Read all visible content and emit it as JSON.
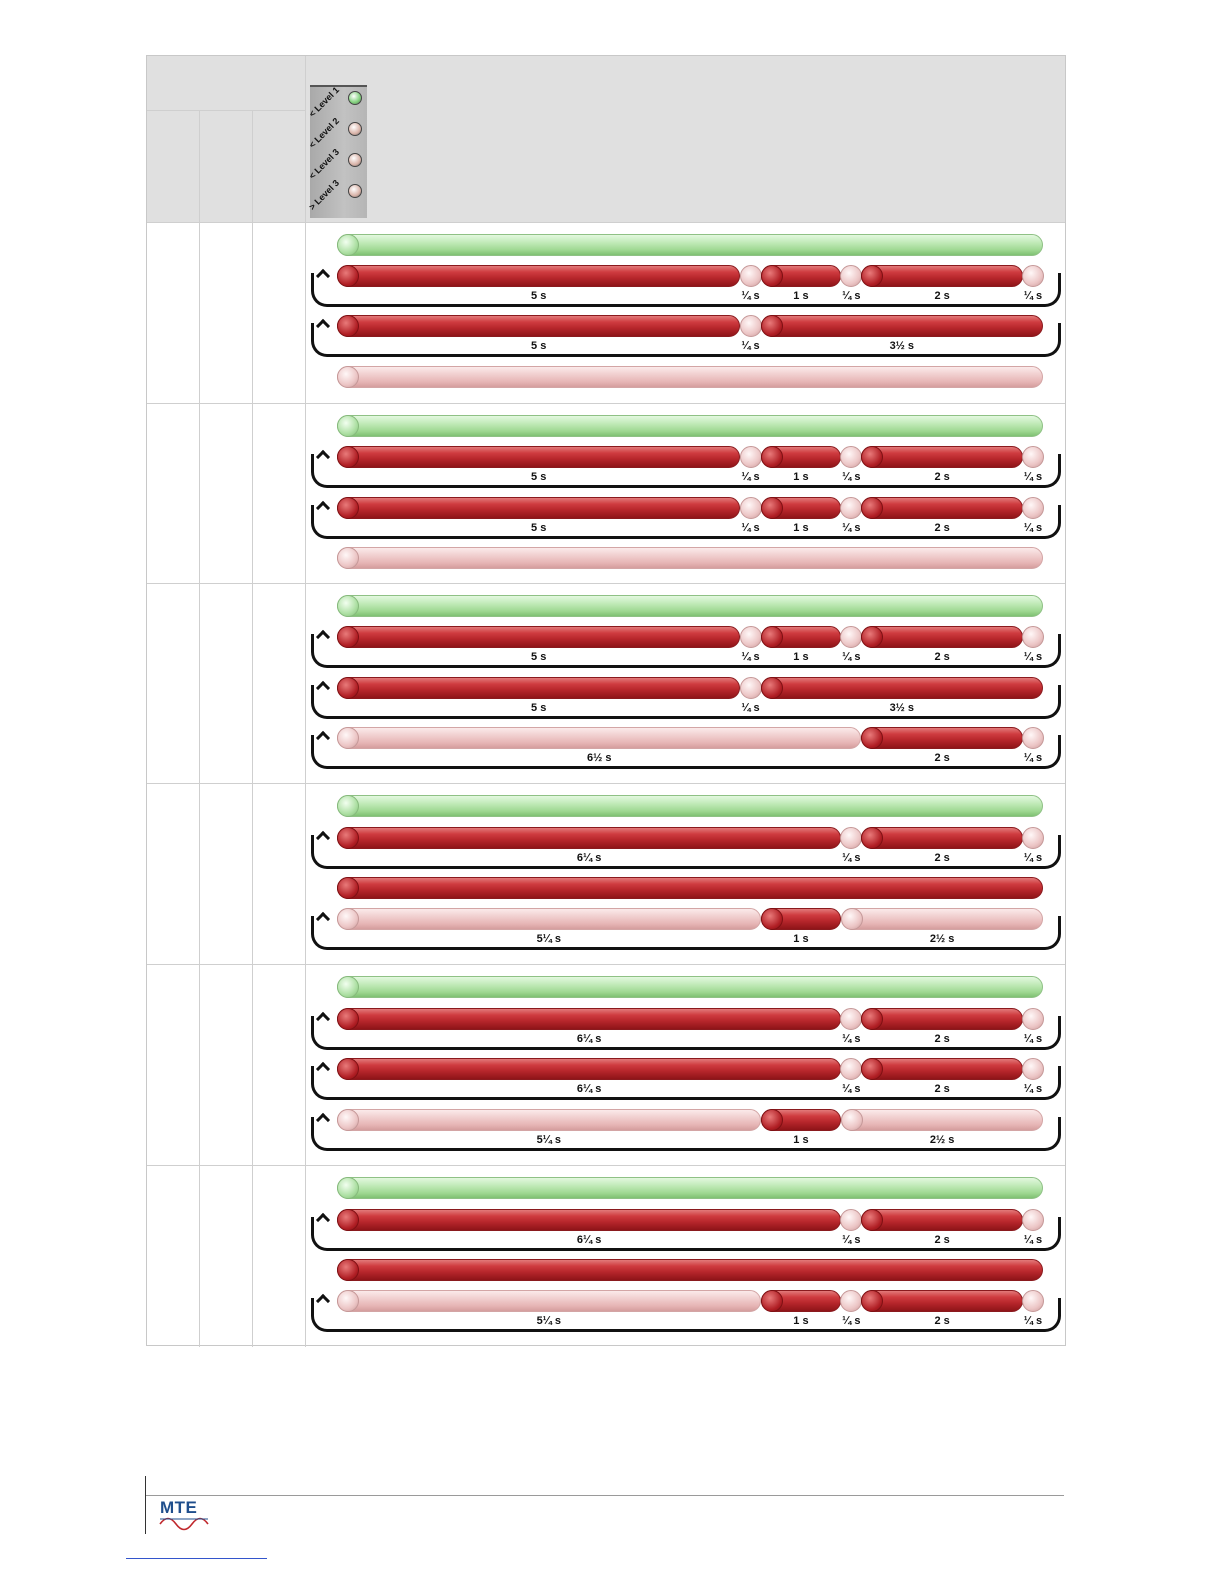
{
  "legend": {
    "labels": [
      "< Level 1",
      "< Level 2",
      "< Level 3",
      "> Level 3"
    ],
    "led_colors": [
      "#7fd07a",
      "#d9b3a8",
      "#d9b3a8",
      "#d9b3a8"
    ]
  },
  "colors": {
    "red": "#c0282d",
    "green": "#a9dc9e",
    "pink": "#ecc4c4"
  },
  "timeline_total_s": 8.75,
  "rows": [
    {
      "lanes": [
        {
          "loop": false,
          "segments": [
            {
              "c": "green",
              "d": 8.75,
              "label": ""
            }
          ]
        },
        {
          "loop": true,
          "segments": [
            {
              "c": "red",
              "d": 5,
              "label": "5 s"
            },
            {
              "c": "pink",
              "d": 0.25,
              "label": "¼ s"
            },
            {
              "c": "red",
              "d": 1,
              "label": "1 s"
            },
            {
              "c": "pink",
              "d": 0.25,
              "label": "¼ s"
            },
            {
              "c": "red",
              "d": 2,
              "label": "2 s"
            },
            {
              "c": "pink",
              "d": 0.25,
              "label": "¼ s"
            }
          ]
        },
        {
          "loop": true,
          "segments": [
            {
              "c": "red",
              "d": 5,
              "label": "5 s"
            },
            {
              "c": "pink",
              "d": 0.25,
              "label": "¼ s"
            },
            {
              "c": "red",
              "d": 3.5,
              "label": "3½ s"
            }
          ]
        },
        {
          "loop": false,
          "segments": [
            {
              "c": "pink",
              "d": 8.75,
              "label": ""
            }
          ]
        }
      ]
    },
    {
      "lanes": [
        {
          "loop": false,
          "segments": [
            {
              "c": "green",
              "d": 8.75,
              "label": ""
            }
          ]
        },
        {
          "loop": true,
          "segments": [
            {
              "c": "red",
              "d": 5,
              "label": "5 s"
            },
            {
              "c": "pink",
              "d": 0.25,
              "label": "¼ s"
            },
            {
              "c": "red",
              "d": 1,
              "label": "1 s"
            },
            {
              "c": "pink",
              "d": 0.25,
              "label": "¼ s"
            },
            {
              "c": "red",
              "d": 2,
              "label": "2 s"
            },
            {
              "c": "pink",
              "d": 0.25,
              "label": "¼ s"
            }
          ]
        },
        {
          "loop": true,
          "segments": [
            {
              "c": "red",
              "d": 5,
              "label": "5 s"
            },
            {
              "c": "pink",
              "d": 0.25,
              "label": "¼ s"
            },
            {
              "c": "red",
              "d": 1,
              "label": "1 s"
            },
            {
              "c": "pink",
              "d": 0.25,
              "label": "¼ s"
            },
            {
              "c": "red",
              "d": 2,
              "label": "2 s"
            },
            {
              "c": "pink",
              "d": 0.25,
              "label": "¼ s"
            }
          ]
        },
        {
          "loop": false,
          "segments": [
            {
              "c": "pink",
              "d": 8.75,
              "label": ""
            }
          ]
        }
      ]
    },
    {
      "lanes": [
        {
          "loop": false,
          "segments": [
            {
              "c": "green",
              "d": 8.75,
              "label": ""
            }
          ]
        },
        {
          "loop": true,
          "segments": [
            {
              "c": "red",
              "d": 5,
              "label": "5 s"
            },
            {
              "c": "pink",
              "d": 0.25,
              "label": "¼ s"
            },
            {
              "c": "red",
              "d": 1,
              "label": "1 s"
            },
            {
              "c": "pink",
              "d": 0.25,
              "label": "¼ s"
            },
            {
              "c": "red",
              "d": 2,
              "label": "2 s"
            },
            {
              "c": "pink",
              "d": 0.25,
              "label": "¼ s"
            }
          ]
        },
        {
          "loop": true,
          "segments": [
            {
              "c": "red",
              "d": 5,
              "label": "5 s"
            },
            {
              "c": "pink",
              "d": 0.25,
              "label": "¼ s"
            },
            {
              "c": "red",
              "d": 3.5,
              "label": "3½ s"
            }
          ]
        },
        {
          "loop": true,
          "segments": [
            {
              "c": "pink",
              "d": 6.5,
              "label": "6½ s"
            },
            {
              "c": "red",
              "d": 2,
              "label": "2 s"
            },
            {
              "c": "pink",
              "d": 0.25,
              "label": "¼ s"
            }
          ]
        }
      ]
    },
    {
      "lanes": [
        {
          "loop": false,
          "segments": [
            {
              "c": "green",
              "d": 8.75,
              "label": ""
            }
          ]
        },
        {
          "loop": true,
          "segments": [
            {
              "c": "red",
              "d": 6.25,
              "label": "6¼ s"
            },
            {
              "c": "pink",
              "d": 0.25,
              "label": "¼ s"
            },
            {
              "c": "red",
              "d": 2,
              "label": "2 s"
            },
            {
              "c": "pink",
              "d": 0.25,
              "label": "¼ s"
            }
          ]
        },
        {
          "loop": false,
          "segments": [
            {
              "c": "red",
              "d": 8.75,
              "label": ""
            }
          ]
        },
        {
          "loop": true,
          "segments": [
            {
              "c": "pink",
              "d": 5.25,
              "label": "5¼ s"
            },
            {
              "c": "red",
              "d": 1,
              "label": "1 s"
            },
            {
              "c": "pink",
              "d": 2.5,
              "label": "2½ s"
            }
          ]
        }
      ]
    },
    {
      "lanes": [
        {
          "loop": false,
          "segments": [
            {
              "c": "green",
              "d": 8.75,
              "label": ""
            }
          ]
        },
        {
          "loop": true,
          "segments": [
            {
              "c": "red",
              "d": 6.25,
              "label": "6¼ s"
            },
            {
              "c": "pink",
              "d": 0.25,
              "label": "¼ s"
            },
            {
              "c": "red",
              "d": 2,
              "label": "2 s"
            },
            {
              "c": "pink",
              "d": 0.25,
              "label": "¼ s"
            }
          ]
        },
        {
          "loop": true,
          "segments": [
            {
              "c": "red",
              "d": 6.25,
              "label": "6¼ s"
            },
            {
              "c": "pink",
              "d": 0.25,
              "label": "¼ s"
            },
            {
              "c": "red",
              "d": 2,
              "label": "2 s"
            },
            {
              "c": "pink",
              "d": 0.25,
              "label": "¼ s"
            }
          ]
        },
        {
          "loop": true,
          "segments": [
            {
              "c": "pink",
              "d": 5.25,
              "label": "5¼ s"
            },
            {
              "c": "red",
              "d": 1,
              "label": "1 s"
            },
            {
              "c": "pink",
              "d": 2.5,
              "label": "2½ s"
            }
          ]
        }
      ]
    },
    {
      "lanes": [
        {
          "loop": false,
          "segments": [
            {
              "c": "green",
              "d": 8.75,
              "label": ""
            }
          ]
        },
        {
          "loop": true,
          "segments": [
            {
              "c": "red",
              "d": 6.25,
              "label": "6¼ s"
            },
            {
              "c": "pink",
              "d": 0.25,
              "label": "¼ s"
            },
            {
              "c": "red",
              "d": 2,
              "label": "2 s"
            },
            {
              "c": "pink",
              "d": 0.25,
              "label": "¼ s"
            }
          ]
        },
        {
          "loop": false,
          "segments": [
            {
              "c": "red",
              "d": 8.75,
              "label": ""
            }
          ]
        },
        {
          "loop": true,
          "segments": [
            {
              "c": "pink",
              "d": 5.25,
              "label": "5¼ s"
            },
            {
              "c": "red",
              "d": 1,
              "label": "1 s"
            },
            {
              "c": "pink",
              "d": 0.25,
              "label": "¼ s"
            },
            {
              "c": "red",
              "d": 2,
              "label": "2 s"
            },
            {
              "c": "pink",
              "d": 0.25,
              "label": "¼ s"
            }
          ]
        }
      ]
    }
  ],
  "footer": {
    "logo_text": "MTE"
  }
}
